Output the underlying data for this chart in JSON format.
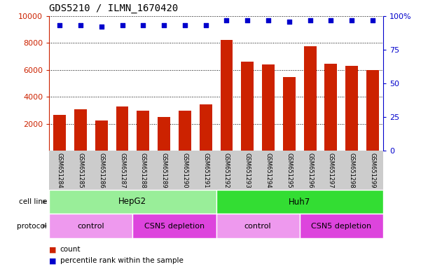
{
  "title": "GDS5210 / ILMN_1670420",
  "samples": [
    "GSM651284",
    "GSM651285",
    "GSM651286",
    "GSM651287",
    "GSM651288",
    "GSM651289",
    "GSM651290",
    "GSM651291",
    "GSM651292",
    "GSM651293",
    "GSM651294",
    "GSM651295",
    "GSM651296",
    "GSM651297",
    "GSM651298",
    "GSM651299"
  ],
  "counts": [
    2650,
    3050,
    2250,
    3300,
    2950,
    2500,
    2950,
    3450,
    8250,
    6600,
    6400,
    5450,
    7750,
    6450,
    6300,
    5980
  ],
  "percentile_ranks": [
    93,
    93,
    92,
    93,
    93,
    93,
    93,
    93,
    97,
    97,
    97,
    96,
    97,
    97,
    97,
    97
  ],
  "bar_color": "#cc2200",
  "dot_color": "#0000cc",
  "ylim_left": [
    0,
    10000
  ],
  "ylim_right": [
    0,
    100
  ],
  "yticks_left": [
    2000,
    4000,
    6000,
    8000,
    10000
  ],
  "yticks_right": [
    0,
    25,
    50,
    75,
    100
  ],
  "cell_line_groups": [
    {
      "label": "HepG2",
      "start": 0,
      "end": 7,
      "color": "#99ee99"
    },
    {
      "label": "Huh7",
      "start": 8,
      "end": 15,
      "color": "#33dd33"
    }
  ],
  "protocol_groups": [
    {
      "label": "control",
      "start": 0,
      "end": 3,
      "color": "#ee99ee"
    },
    {
      "label": "CSN5 depletion",
      "start": 4,
      "end": 7,
      "color": "#dd44dd"
    },
    {
      "label": "control",
      "start": 8,
      "end": 11,
      "color": "#ee99ee"
    },
    {
      "label": "CSN5 depletion",
      "start": 12,
      "end": 15,
      "color": "#dd44dd"
    }
  ],
  "legend_count_color": "#cc2200",
  "legend_dot_color": "#0000cc",
  "background_color": "#ffffff",
  "tick_label_color_left": "#cc2200",
  "tick_label_color_right": "#0000cc",
  "xlabel_area_color": "#cccccc",
  "arrow_color": "#888888",
  "label_left_text_color": "#444444"
}
